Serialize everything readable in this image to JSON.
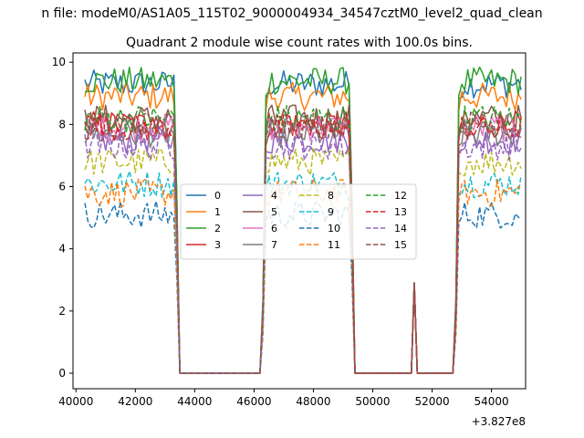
{
  "figure": {
    "suptitle": "n file: modeM0/AS1A05_115T02_9000004934_34547cztM0_level2_quad_clean",
    "title": "Quadrant 2 module wise count rates with 100.0s bins.",
    "x_offset_label": "+3.827e8"
  },
  "chart_data": {
    "type": "line",
    "title": "Quadrant 2 module wise count rates with 100.0s bins.",
    "xlabel": "",
    "ylabel": "",
    "x_offset": 382700000,
    "xlim": [
      39900,
      55150
    ],
    "ylim": [
      -0.5,
      10.3
    ],
    "x_ticks": [
      40000,
      42000,
      44000,
      46000,
      48000,
      50000,
      52000,
      54000
    ],
    "y_ticks": [
      0,
      2,
      4,
      6,
      8,
      10
    ],
    "grid": false,
    "legend": {
      "position": "center",
      "columns": 4
    },
    "x_points": [
      40300,
      40400,
      40500,
      40600,
      40700,
      40800,
      40900,
      41000,
      41100,
      41200,
      41300,
      41400,
      41500,
      41600,
      41700,
      41800,
      41900,
      42000,
      42100,
      42200,
      42300,
      42400,
      42500,
      42600,
      42700,
      42800,
      42900,
      43000,
      43100,
      43200,
      43300,
      43400,
      43500,
      43600,
      43700,
      43800,
      43900,
      44000,
      44100,
      44200,
      44300,
      44400,
      44500,
      44600,
      44700,
      44800,
      44900,
      45000,
      45100,
      45200,
      45300,
      45400,
      45500,
      45600,
      45700,
      45800,
      45900,
      46000,
      46100,
      46200,
      46300,
      46400,
      46500,
      46600,
      46700,
      46800,
      46900,
      47000,
      47100,
      47200,
      47300,
      47400,
      47500,
      47600,
      47700,
      47800,
      47900,
      48000,
      48100,
      48200,
      48300,
      48400,
      48500,
      48600,
      48700,
      48800,
      48900,
      49000,
      49100,
      49200,
      49300,
      49400,
      49500,
      49600,
      49700,
      49800,
      49900,
      50000,
      50100,
      50200,
      50300,
      50400,
      50500,
      50600,
      50700,
      50800,
      50900,
      51000,
      51100,
      51200,
      51300,
      51400,
      51500,
      51600,
      51700,
      51800,
      51900,
      52000,
      52100,
      52200,
      52300,
      52400,
      52500,
      52600,
      52700,
      52800,
      52900,
      53000,
      53100,
      53200,
      53300,
      53400,
      53500,
      53600,
      53700,
      53800,
      53900,
      54000,
      54100,
      54200,
      54300,
      54400,
      54500,
      54600,
      54700,
      54800,
      54900,
      55000
    ],
    "segments": [
      {
        "type": "active",
        "x": [
          40300,
          43300
        ]
      },
      {
        "type": "decline",
        "x": [
          43400,
          43500
        ]
      },
      {
        "type": "zero",
        "x": [
          43500,
          46200
        ]
      },
      {
        "type": "rise",
        "x": [
          46300,
          46400
        ]
      },
      {
        "type": "active",
        "x": [
          46400,
          49200
        ]
      },
      {
        "type": "decline",
        "x": [
          49300,
          49400
        ]
      },
      {
        "type": "zero",
        "x": [
          49400,
          51300
        ]
      },
      {
        "type": "spike",
        "x": [
          51400,
          51400
        ],
        "peak": 2.9
      },
      {
        "type": "zero",
        "x": [
          51500,
          52700
        ]
      },
      {
        "type": "rise",
        "x": [
          52800,
          52900
        ]
      },
      {
        "type": "active",
        "x": [
          52900,
          55000
        ]
      }
    ],
    "series": [
      {
        "name": "0",
        "color": "#1f77b4",
        "style": "solid",
        "level": 9.3
      },
      {
        "name": "1",
        "color": "#ff7f0e",
        "style": "solid",
        "level": 8.9
      },
      {
        "name": "2",
        "color": "#2ca02c",
        "style": "solid",
        "level": 9.4
      },
      {
        "name": "3",
        "color": "#d62728",
        "style": "solid",
        "level": 8.0
      },
      {
        "name": "4",
        "color": "#9467bd",
        "style": "solid",
        "level": 7.5
      },
      {
        "name": "5",
        "color": "#8c564b",
        "style": "solid",
        "level": 8.2
      },
      {
        "name": "6",
        "color": "#e377c2",
        "style": "solid",
        "level": 7.9
      },
      {
        "name": "7",
        "color": "#7f7f7f",
        "style": "solid",
        "level": 7.7
      },
      {
        "name": "8",
        "color": "#bcbd22",
        "style": "dashed",
        "level": 6.8
      },
      {
        "name": "9",
        "color": "#17becf",
        "style": "dashed",
        "level": 6.1
      },
      {
        "name": "10",
        "color": "#1f77b4",
        "style": "dashed",
        "level": 5.1
      },
      {
        "name": "11",
        "color": "#ff7f0e",
        "style": "dashed",
        "level": 5.8
      },
      {
        "name": "12",
        "color": "#2ca02c",
        "style": "dashed",
        "level": 8.2
      },
      {
        "name": "13",
        "color": "#d62728",
        "style": "dashed",
        "level": 7.9
      },
      {
        "name": "14",
        "color": "#9467bd",
        "style": "dashed",
        "level": 7.3
      },
      {
        "name": "15",
        "color": "#8c564b",
        "style": "dashed",
        "level": 8.0
      }
    ]
  }
}
